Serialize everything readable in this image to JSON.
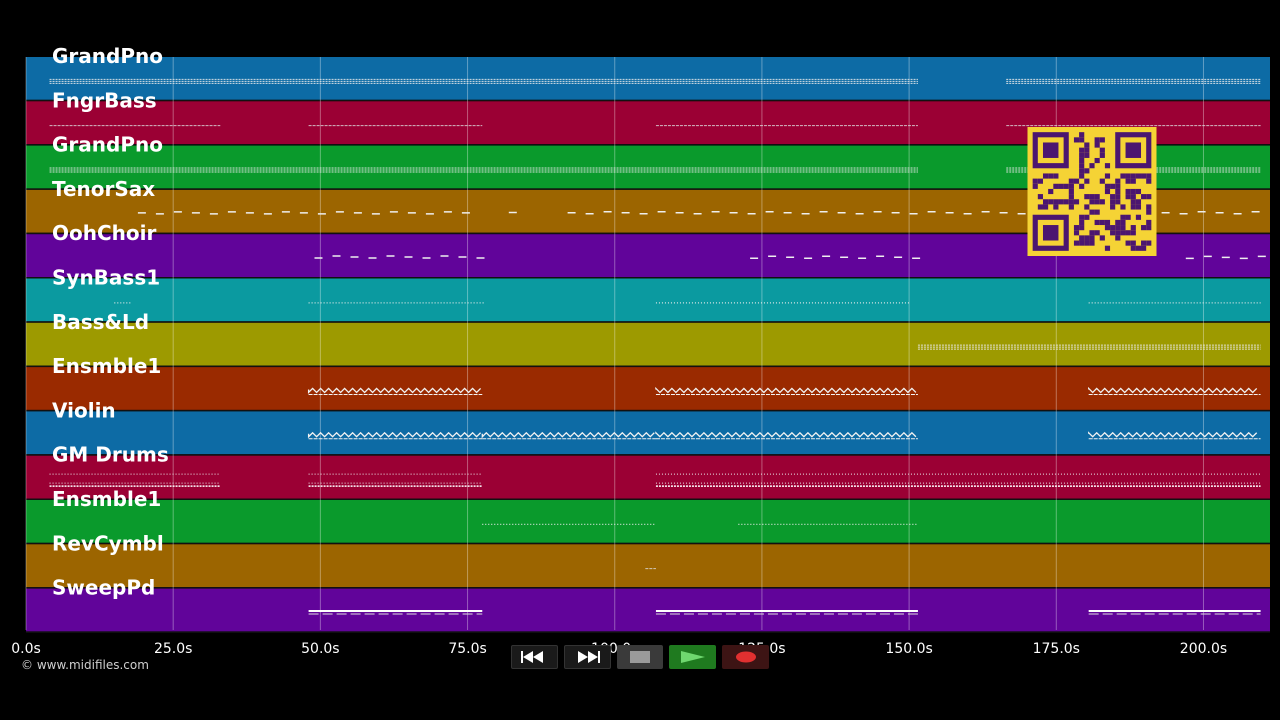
{
  "app": {
    "copyright": "© www.midifiles.com"
  },
  "timeline": {
    "ticks": [
      {
        "t": 0,
        "label": "0.0s"
      },
      {
        "t": 25,
        "label": "25.0s"
      },
      {
        "t": 50,
        "label": "50.0s"
      },
      {
        "t": 75,
        "label": "75.0s"
      },
      {
        "t": 100,
        "label": "100.0s"
      },
      {
        "t": 125,
        "label": "125.0s"
      },
      {
        "t": 150,
        "label": "150.0s"
      },
      {
        "t": 175,
        "label": "175.0s"
      },
      {
        "t": 200,
        "label": "200.0s"
      }
    ],
    "range": [
      0,
      211.3
    ]
  },
  "tracks": [
    {
      "name": "GrandPno",
      "color": "#0d6ba5",
      "segments": [
        [
          4,
          151.5
        ],
        [
          166.5,
          209.7
        ]
      ],
      "style": "dense"
    },
    {
      "name": "FngrBass",
      "color": "#9b0034",
      "segments": [
        [
          4,
          33
        ],
        [
          48,
          77.5
        ],
        [
          107,
          151.5
        ],
        [
          166.5,
          209.7
        ]
      ],
      "style": "thin"
    },
    {
      "name": "GrandPno",
      "color": "#0a9a2c",
      "segments": [
        [
          4,
          151.5
        ],
        [
          166.5,
          209.7
        ]
      ],
      "style": "dense"
    },
    {
      "name": "TenorSax",
      "color": "#9c6500",
      "segments": [
        [
          19,
          77
        ],
        [
          82,
          84
        ],
        [
          92,
          211
        ]
      ],
      "style": "dashed"
    },
    {
      "name": "OohChoir",
      "color": "#61049a",
      "segments": [
        [
          49,
          78
        ],
        [
          123,
          152
        ],
        [
          197,
          211
        ]
      ],
      "style": "dashed"
    },
    {
      "name": "SynBass1",
      "color": "#0b9aa0",
      "segments": [
        [
          15,
          18
        ],
        [
          48,
          78
        ],
        [
          107,
          150
        ],
        [
          180.5,
          209.7
        ]
      ],
      "style": "dotted"
    },
    {
      "name": "Bass&Ld",
      "color": "#9d9a00",
      "segments": [
        [
          151.5,
          209.7
        ]
      ],
      "style": "dense"
    },
    {
      "name": "Ensmble1",
      "color": "#9a2a00",
      "segments": [
        [
          48,
          77.5
        ],
        [
          107,
          151.5
        ],
        [
          180.5,
          209.7
        ]
      ],
      "style": "wave"
    },
    {
      "name": "Violin",
      "color": "#0d6ba5",
      "segments": [
        [
          48,
          77.5
        ],
        [
          77.5,
          107
        ],
        [
          107,
          151.5
        ],
        [
          180.5,
          209.7
        ]
      ],
      "style": "wave"
    },
    {
      "name": "GM Drums",
      "color": "#9b0034",
      "segments": [
        [
          4,
          33
        ],
        [
          48,
          77.5
        ],
        [
          107,
          209.7
        ]
      ],
      "style": "drums"
    },
    {
      "name": "Ensmble1",
      "color": "#0a9a2c",
      "segments": [
        [
          77.5,
          107
        ],
        [
          121,
          151.5
        ]
      ],
      "style": "dotted"
    },
    {
      "name": "RevCymbl",
      "color": "#9c6500",
      "segments": [
        [
          105.2,
          107
        ]
      ],
      "style": "thin"
    },
    {
      "name": "SweepPd",
      "color": "#61049a",
      "segments": [
        [
          48,
          77.5
        ],
        [
          107,
          151.5
        ],
        [
          180.5,
          209.7
        ]
      ],
      "style": "sweep"
    }
  ],
  "transport": {
    "buttons": [
      {
        "name": "rewind-button",
        "icon": "rewind-icon"
      },
      {
        "name": "fast-forward-button",
        "icon": "fast-forward-icon"
      },
      {
        "name": "stop-button",
        "icon": "stop-icon"
      },
      {
        "name": "play-button",
        "icon": "play-icon"
      },
      {
        "name": "record-button",
        "icon": "record-icon"
      }
    ]
  }
}
